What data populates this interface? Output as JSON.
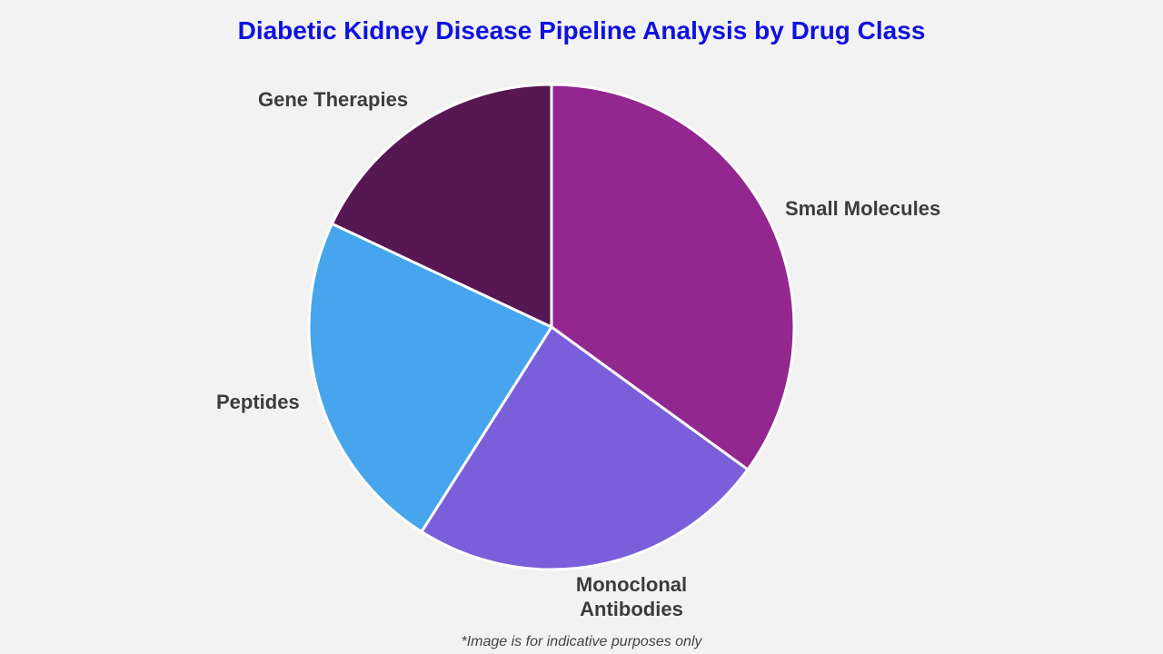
{
  "chart_data": {
    "type": "pie",
    "title": "Diabetic Kidney Disease Pipeline Analysis by Drug Class",
    "categories": [
      "Small Molecules",
      "Monoclonal Antibodies",
      "Peptides",
      "Gene Therapies"
    ],
    "values": [
      35,
      24,
      23,
      18
    ],
    "colors": [
      "#92278f",
      "#7a5fdb",
      "#46a5ec",
      "#561753"
    ],
    "start": "top, clockwise",
    "footnote": "*Image is for indicative purposes only"
  }
}
